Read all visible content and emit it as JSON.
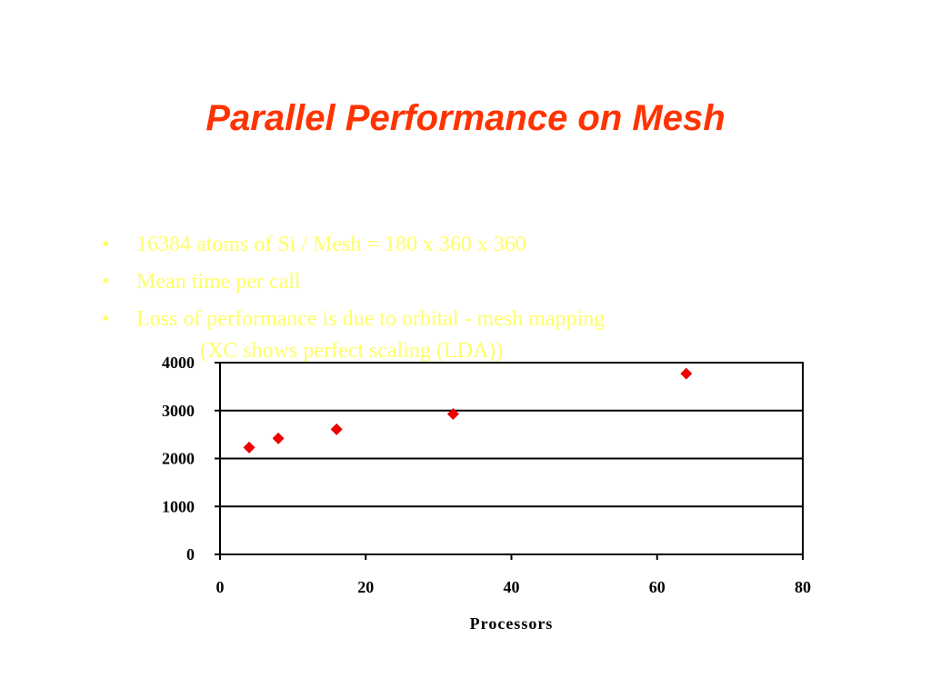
{
  "slide": {
    "title": "Parallel Performance on Mesh",
    "bullets": [
      {
        "text": "16384 atoms of Si / Mesh = 180 x 360 x 360"
      },
      {
        "text": "Mean time per call"
      },
      {
        "text": "Loss of performance is due to orbital - mesh mapping",
        "continuation": "(XC shows perfect scaling (LDA))"
      }
    ],
    "bullet_glyph": "•"
  },
  "colors": {
    "title": "#ff3300",
    "bullet_text": "#ffff66",
    "marker": "#ee0000",
    "axis": "#000000"
  },
  "chart_data": {
    "type": "scatter",
    "title": "",
    "xlabel": "Processors",
    "ylabel": "",
    "xlim": [
      0,
      80
    ],
    "ylim": [
      0,
      4000
    ],
    "x_ticks": [
      0,
      20,
      40,
      60,
      80
    ],
    "y_ticks": [
      0,
      1000,
      2000,
      3000,
      4000
    ],
    "grid": "horizontal",
    "marker": "diamond",
    "series": [
      {
        "points": [
          {
            "x": 4,
            "y": 2230
          },
          {
            "x": 8,
            "y": 2420
          },
          {
            "x": 16,
            "y": 2610
          },
          {
            "x": 32,
            "y": 2930
          },
          {
            "x": 64,
            "y": 3770
          }
        ]
      }
    ]
  }
}
